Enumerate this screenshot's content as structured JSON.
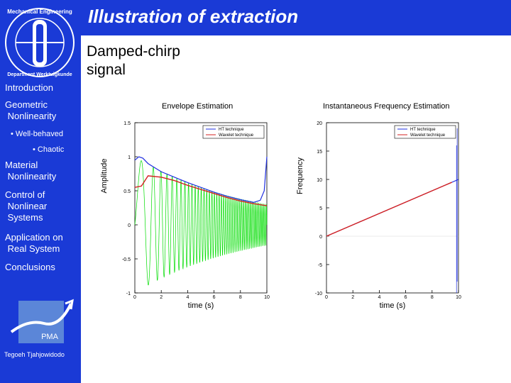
{
  "slide": {
    "title": "Illustration of extraction",
    "subtitle": "Damped-chirp\nsignal",
    "author": "Tegoeh Tjahjowidodo"
  },
  "logo": {
    "ring_text_top": "Mechanical Engineering",
    "ring_text_bottom": "Department Werktuigkunde",
    "pma_text": "PMA"
  },
  "sidebar": {
    "items": [
      {
        "label": "Introduction"
      },
      {
        "label": "Geometric\n Nonlinearity"
      },
      {
        "label": "• Well-behaved"
      },
      {
        "label": "• Chaotic"
      },
      {
        "label": "Material\n Nonlinearity"
      },
      {
        "label": "Control of\n Nonlinear\n Systems"
      },
      {
        "label": "Application on\n Real System"
      },
      {
        "label": "Conclusions"
      }
    ]
  },
  "colors": {
    "blue_bg": "#1a3ad6",
    "ht": "#1f2fe0",
    "wavelet": "#d42020",
    "signal": "#00dd00"
  },
  "chart_data": [
    {
      "type": "line",
      "title": "Envelope Estimation",
      "xlabel": "time (s)",
      "ylabel": "Amplitude",
      "xlim": [
        0,
        10
      ],
      "ylim": [
        -1,
        1.5
      ],
      "xticks": [
        "0",
        "2",
        "4",
        "6",
        "8",
        "10"
      ],
      "yticks": [
        "-1",
        "-0.5",
        "0",
        "0.5",
        "1",
        "1.5"
      ],
      "legend": [
        "HT technique",
        "Wavelet technique"
      ],
      "legend_position": "top-right",
      "series": [
        {
          "name": "HT technique",
          "x": [
            0,
            0.3,
            0.6,
            1,
            2,
            3,
            4,
            5,
            6,
            7,
            8,
            9,
            9.5,
            9.8,
            10
          ],
          "y": [
            0.95,
            1.0,
            0.98,
            0.9,
            0.78,
            0.7,
            0.62,
            0.55,
            0.48,
            0.42,
            0.37,
            0.33,
            0.36,
            0.5,
            1.0
          ]
        },
        {
          "name": "Wavelet technique",
          "x": [
            0,
            0.5,
            1,
            2,
            3,
            4,
            5,
            6,
            7,
            8,
            9,
            10
          ],
          "y": [
            0.55,
            0.57,
            0.72,
            0.7,
            0.65,
            0.58,
            0.52,
            0.46,
            0.4,
            0.35,
            0.31,
            0.28
          ]
        },
        {
          "name": "signal",
          "decay_amplitude": [
            1.0,
            0.3
          ]
        }
      ]
    },
    {
      "type": "line",
      "title": "Instantaneous Frequency Estimation",
      "xlabel": "time (s)",
      "ylabel": "Frequency",
      "xlim": [
        0,
        10
      ],
      "ylim": [
        -10,
        20
      ],
      "xticks": [
        "0",
        "2",
        "4",
        "6",
        "8",
        "10"
      ],
      "yticks": [
        "-10",
        "-5",
        "0",
        "5",
        "10",
        "15",
        "20"
      ],
      "legend": [
        "HT technique",
        "Wavelet technique"
      ],
      "legend_position": "top-right",
      "series": [
        {
          "name": "HT technique",
          "x": [
            0,
            2,
            4,
            6,
            8,
            9,
            9.5,
            10
          ],
          "y": [
            0,
            2,
            4,
            6,
            8,
            9,
            9.5,
            10
          ]
        },
        {
          "name": "Wavelet technique",
          "x": [
            0,
            2,
            4,
            6,
            8,
            9,
            9.5
          ],
          "y": [
            0,
            2,
            4,
            6,
            8,
            9,
            9.5
          ]
        }
      ]
    }
  ]
}
